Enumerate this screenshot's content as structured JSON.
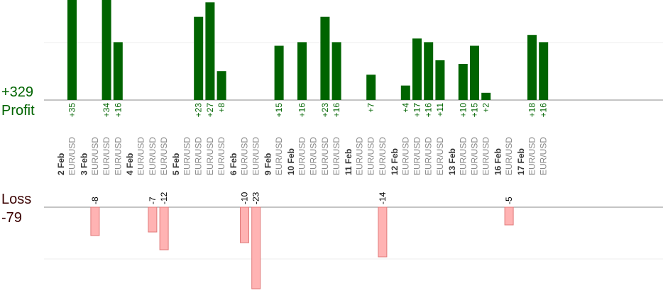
{
  "summary": {
    "profit_total": "+329",
    "profit_label": "Profit",
    "loss_label": "Loss",
    "loss_total": "-79"
  },
  "colors": {
    "profit_bar": "#006400",
    "loss_bar_fill": "#ffb3b3",
    "loss_bar_stroke": "#e07a7a",
    "baseline": "#888888",
    "grid": "#eeeeee",
    "date_label": "#333333",
    "pair_label": "#888888"
  },
  "chart_data": {
    "type": "bar",
    "title": "",
    "grid": true,
    "groups": [
      {
        "date": "2 Feb",
        "trades": [
          {
            "pair": "EUR/USD",
            "value": 35
          }
        ]
      },
      {
        "date": "3 Feb",
        "trades": [
          {
            "pair": "EUR/USD",
            "value": -8
          },
          {
            "pair": "EUR/USD",
            "value": 34
          },
          {
            "pair": "EUR/USD",
            "value": 16
          }
        ]
      },
      {
        "date": "4 Feb",
        "trades": [
          {
            "pair": "EUR/USD",
            "value": null
          },
          {
            "pair": "EUR/USD",
            "value": -7
          },
          {
            "pair": "EUR/USD",
            "value": -12
          }
        ]
      },
      {
        "date": "5 Feb",
        "trades": [
          {
            "pair": "EUR/USD",
            "value": null
          },
          {
            "pair": "EUR/USD",
            "value": 23
          },
          {
            "pair": "EUR/USD",
            "value": 27
          },
          {
            "pair": "EUR/USD",
            "value": 8
          }
        ]
      },
      {
        "date": "6 Feb",
        "trades": [
          {
            "pair": "EUR/USD",
            "value": -10
          },
          {
            "pair": "EUR/USD",
            "value": -23
          }
        ]
      },
      {
        "date": "9 Feb",
        "trades": [
          {
            "pair": "EUR/USD",
            "value": 15
          }
        ]
      },
      {
        "date": "10 Feb",
        "trades": [
          {
            "pair": "EUR/USD",
            "value": 16
          },
          {
            "pair": "EUR/USD",
            "value": null
          },
          {
            "pair": "EUR/USD",
            "value": 23
          },
          {
            "pair": "EUR/USD",
            "value": 16
          }
        ]
      },
      {
        "date": "11 Feb",
        "trades": [
          {
            "pair": "EUR/USD",
            "value": null
          },
          {
            "pair": "EUR/USD",
            "value": 7
          },
          {
            "pair": "EUR/USD",
            "value": -14
          }
        ]
      },
      {
        "date": "12 Feb",
        "trades": [
          {
            "pair": "EUR/USD",
            "value": 4
          },
          {
            "pair": "EUR/USD",
            "value": 17
          },
          {
            "pair": "EUR/USD",
            "value": 16
          },
          {
            "pair": "EUR/USD",
            "value": 11
          }
        ]
      },
      {
        "date": "13 Feb",
        "trades": [
          {
            "pair": "EUR/USD",
            "value": 10
          },
          {
            "pair": "EUR/USD",
            "value": 15
          },
          {
            "pair": "EUR/USD",
            "value": 2
          }
        ]
      },
      {
        "date": "16 Feb",
        "trades": [
          {
            "pair": "EUR/USD",
            "value": -5
          }
        ]
      },
      {
        "date": "17 Feb",
        "trades": [
          {
            "pair": "EUR/USD",
            "value": 18
          },
          {
            "pair": "EUR/USD",
            "value": 16
          }
        ]
      }
    ]
  }
}
